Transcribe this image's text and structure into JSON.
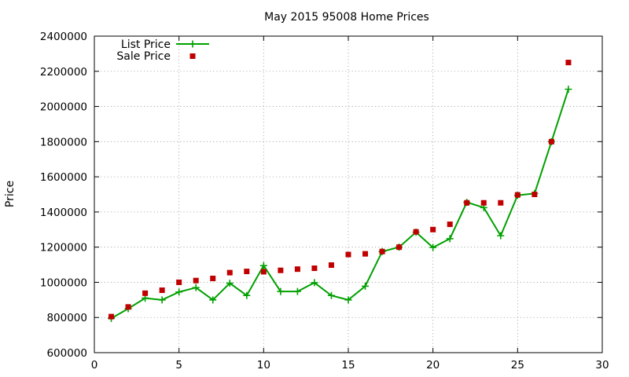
{
  "chart_data": {
    "type": "line",
    "title": "May 2015 95008 Home Prices",
    "xlabel": "",
    "ylabel": "Price",
    "xlim": [
      0,
      30
    ],
    "ylim": [
      600000,
      2400000
    ],
    "xticks": [
      0,
      5,
      10,
      15,
      20,
      25,
      30
    ],
    "yticks": [
      600000,
      800000,
      1000000,
      1200000,
      1400000,
      1600000,
      1800000,
      2000000,
      2200000,
      2400000
    ],
    "grid": true,
    "legend_position": "top-left",
    "series": [
      {
        "name": "List Price",
        "style": "linespoints",
        "marker": "plus",
        "color": "#00a000",
        "x": [
          1,
          2,
          3,
          4,
          5,
          6,
          7,
          8,
          9,
          10,
          11,
          12,
          13,
          14,
          15,
          16,
          17,
          18,
          19,
          20,
          21,
          22,
          23,
          24,
          25,
          26,
          27,
          28
        ],
        "values": [
          795000,
          850000,
          910000,
          900000,
          945000,
          970000,
          900000,
          995000,
          925000,
          1095000,
          948000,
          948000,
          998000,
          925000,
          900000,
          978000,
          1175000,
          1200000,
          1285000,
          1198000,
          1248000,
          1455000,
          1425000,
          1265000,
          1495000,
          1505000,
          1800000,
          2098000
        ]
      },
      {
        "name": "Sale Price",
        "style": "points",
        "marker": "square",
        "color": "#c00000",
        "x": [
          1,
          2,
          3,
          4,
          5,
          6,
          7,
          8,
          9,
          10,
          11,
          12,
          13,
          14,
          15,
          16,
          17,
          18,
          19,
          20,
          21,
          22,
          23,
          24,
          25,
          26,
          27,
          28
        ],
        "values": [
          805000,
          860000,
          938000,
          955000,
          1000000,
          1010000,
          1022000,
          1055000,
          1062000,
          1060000,
          1068000,
          1075000,
          1080000,
          1098000,
          1158000,
          1162000,
          1175000,
          1200000,
          1287000,
          1300000,
          1330000,
          1452000,
          1452000,
          1452000,
          1497000,
          1500000,
          1800000,
          2250000
        ]
      }
    ]
  }
}
